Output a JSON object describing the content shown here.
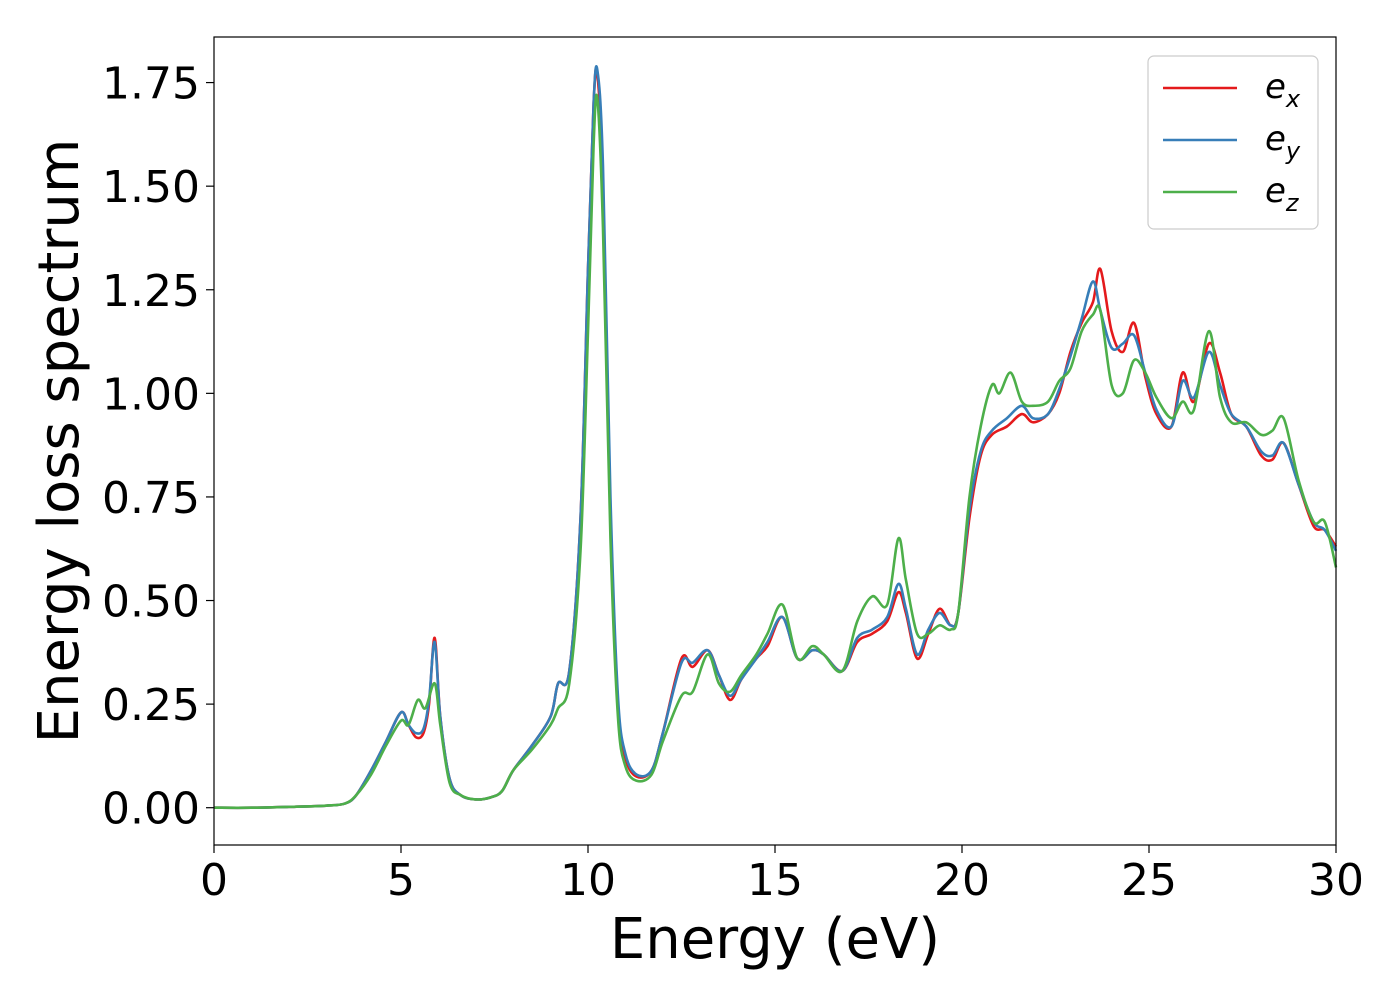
{
  "chart_data": {
    "type": "line",
    "xlabel": "Energy (eV)",
    "ylabel": "Energy loss spectrum",
    "xlim": [
      0,
      30
    ],
    "ylim": [
      -0.09,
      1.86
    ],
    "x_ticks": [
      0,
      5,
      10,
      15,
      20,
      25,
      30
    ],
    "x_tick_labels": [
      "0",
      "5",
      "10",
      "15",
      "20",
      "25",
      "30"
    ],
    "y_ticks": [
      0,
      0.25,
      0.5,
      0.75,
      1.0,
      1.25,
      1.5,
      1.75
    ],
    "y_tick_labels": [
      "0.00",
      "0.25",
      "0.50",
      "0.75",
      "1.00",
      "1.25",
      "1.50",
      "1.75"
    ],
    "grid": false,
    "legend_position": "top-right",
    "series": [
      {
        "name": "e",
        "subscript": "x",
        "color": "#e41a1c",
        "points": [
          [
            0,
            0
          ],
          [
            1,
            0
          ],
          [
            2,
            0.002
          ],
          [
            3,
            0.005
          ],
          [
            3.5,
            0.01
          ],
          [
            3.8,
            0.03
          ],
          [
            4.2,
            0.09
          ],
          [
            4.6,
            0.16
          ],
          [
            5.0,
            0.23
          ],
          [
            5.2,
            0.2
          ],
          [
            5.4,
            0.17
          ],
          [
            5.6,
            0.18
          ],
          [
            5.75,
            0.25
          ],
          [
            5.9,
            0.41
          ],
          [
            6.05,
            0.22
          ],
          [
            6.3,
            0.07
          ],
          [
            6.6,
            0.03
          ],
          [
            7.0,
            0.02
          ],
          [
            7.4,
            0.025
          ],
          [
            7.7,
            0.04
          ],
          [
            8.0,
            0.09
          ],
          [
            8.5,
            0.15
          ],
          [
            9.0,
            0.22
          ],
          [
            9.2,
            0.3
          ],
          [
            9.5,
            0.33
          ],
          [
            9.8,
            0.7
          ],
          [
            10.0,
            1.3
          ],
          [
            10.15,
            1.7
          ],
          [
            10.25,
            1.77
          ],
          [
            10.4,
            1.5
          ],
          [
            10.6,
            0.7
          ],
          [
            10.8,
            0.25
          ],
          [
            11.0,
            0.12
          ],
          [
            11.3,
            0.075
          ],
          [
            11.7,
            0.09
          ],
          [
            12.0,
            0.18
          ],
          [
            12.5,
            0.36
          ],
          [
            12.8,
            0.34
          ],
          [
            13.2,
            0.38
          ],
          [
            13.5,
            0.32
          ],
          [
            13.8,
            0.26
          ],
          [
            14.1,
            0.31
          ],
          [
            14.5,
            0.36
          ],
          [
            14.8,
            0.39
          ],
          [
            15.2,
            0.46
          ],
          [
            15.6,
            0.36
          ],
          [
            16.0,
            0.38
          ],
          [
            16.3,
            0.37
          ],
          [
            16.8,
            0.33
          ],
          [
            17.2,
            0.4
          ],
          [
            17.6,
            0.42
          ],
          [
            18.0,
            0.45
          ],
          [
            18.3,
            0.52
          ],
          [
            18.5,
            0.47
          ],
          [
            18.8,
            0.36
          ],
          [
            19.1,
            0.42
          ],
          [
            19.4,
            0.48
          ],
          [
            19.7,
            0.44
          ],
          [
            19.9,
            0.47
          ],
          [
            20.2,
            0.7
          ],
          [
            20.5,
            0.85
          ],
          [
            20.8,
            0.9
          ],
          [
            21.2,
            0.92
          ],
          [
            21.6,
            0.95
          ],
          [
            21.9,
            0.93
          ],
          [
            22.3,
            0.95
          ],
          [
            22.6,
            1.0
          ],
          [
            22.9,
            1.1
          ],
          [
            23.2,
            1.17
          ],
          [
            23.5,
            1.22
          ],
          [
            23.7,
            1.3
          ],
          [
            24.0,
            1.15
          ],
          [
            24.3,
            1.1
          ],
          [
            24.6,
            1.17
          ],
          [
            24.9,
            1.04
          ],
          [
            25.2,
            0.95
          ],
          [
            25.6,
            0.92
          ],
          [
            25.9,
            1.05
          ],
          [
            26.2,
            0.98
          ],
          [
            26.6,
            1.12
          ],
          [
            26.9,
            1.05
          ],
          [
            27.2,
            0.95
          ],
          [
            27.6,
            0.92
          ],
          [
            28.0,
            0.85
          ],
          [
            28.3,
            0.84
          ],
          [
            28.6,
            0.88
          ],
          [
            29.0,
            0.78
          ],
          [
            29.4,
            0.68
          ],
          [
            29.7,
            0.67
          ],
          [
            30.0,
            0.63
          ]
        ]
      },
      {
        "name": "e",
        "subscript": "y",
        "color": "#377eb8",
        "points": [
          [
            0,
            0
          ],
          [
            1,
            0
          ],
          [
            2,
            0.002
          ],
          [
            3,
            0.005
          ],
          [
            3.5,
            0.01
          ],
          [
            3.8,
            0.03
          ],
          [
            4.2,
            0.09
          ],
          [
            4.6,
            0.16
          ],
          [
            5.0,
            0.23
          ],
          [
            5.2,
            0.2
          ],
          [
            5.4,
            0.18
          ],
          [
            5.6,
            0.19
          ],
          [
            5.75,
            0.26
          ],
          [
            5.9,
            0.4
          ],
          [
            6.05,
            0.22
          ],
          [
            6.3,
            0.07
          ],
          [
            6.6,
            0.03
          ],
          [
            7.0,
            0.02
          ],
          [
            7.4,
            0.025
          ],
          [
            7.7,
            0.04
          ],
          [
            8.0,
            0.09
          ],
          [
            8.5,
            0.15
          ],
          [
            9.0,
            0.22
          ],
          [
            9.2,
            0.3
          ],
          [
            9.5,
            0.33
          ],
          [
            9.8,
            0.7
          ],
          [
            10.0,
            1.3
          ],
          [
            10.15,
            1.7
          ],
          [
            10.25,
            1.78
          ],
          [
            10.4,
            1.55
          ],
          [
            10.6,
            0.75
          ],
          [
            10.8,
            0.27
          ],
          [
            11.0,
            0.13
          ],
          [
            11.3,
            0.08
          ],
          [
            11.7,
            0.09
          ],
          [
            12.0,
            0.18
          ],
          [
            12.5,
            0.35
          ],
          [
            12.8,
            0.35
          ],
          [
            13.2,
            0.38
          ],
          [
            13.5,
            0.32
          ],
          [
            13.8,
            0.27
          ],
          [
            14.1,
            0.31
          ],
          [
            14.5,
            0.36
          ],
          [
            14.8,
            0.4
          ],
          [
            15.2,
            0.46
          ],
          [
            15.6,
            0.36
          ],
          [
            16.0,
            0.38
          ],
          [
            16.3,
            0.37
          ],
          [
            16.8,
            0.33
          ],
          [
            17.2,
            0.41
          ],
          [
            17.6,
            0.43
          ],
          [
            18.0,
            0.46
          ],
          [
            18.3,
            0.54
          ],
          [
            18.5,
            0.48
          ],
          [
            18.8,
            0.37
          ],
          [
            19.1,
            0.43
          ],
          [
            19.4,
            0.47
          ],
          [
            19.7,
            0.44
          ],
          [
            19.9,
            0.47
          ],
          [
            20.2,
            0.72
          ],
          [
            20.5,
            0.86
          ],
          [
            20.8,
            0.91
          ],
          [
            21.2,
            0.94
          ],
          [
            21.6,
            0.97
          ],
          [
            21.9,
            0.94
          ],
          [
            22.3,
            0.95
          ],
          [
            22.6,
            1.01
          ],
          [
            22.9,
            1.09
          ],
          [
            23.2,
            1.18
          ],
          [
            23.5,
            1.27
          ],
          [
            23.7,
            1.2
          ],
          [
            24.0,
            1.11
          ],
          [
            24.3,
            1.12
          ],
          [
            24.6,
            1.14
          ],
          [
            24.9,
            1.05
          ],
          [
            25.2,
            0.96
          ],
          [
            25.6,
            0.92
          ],
          [
            25.9,
            1.03
          ],
          [
            26.2,
            0.99
          ],
          [
            26.6,
            1.1
          ],
          [
            26.9,
            1.02
          ],
          [
            27.2,
            0.95
          ],
          [
            27.6,
            0.92
          ],
          [
            28.0,
            0.86
          ],
          [
            28.3,
            0.85
          ],
          [
            28.6,
            0.88
          ],
          [
            29.0,
            0.78
          ],
          [
            29.4,
            0.69
          ],
          [
            29.7,
            0.67
          ],
          [
            30.0,
            0.62
          ]
        ]
      },
      {
        "name": "e",
        "subscript": "z",
        "color": "#4daf4a",
        "points": [
          [
            0,
            0
          ],
          [
            1,
            0
          ],
          [
            2,
            0.002
          ],
          [
            3,
            0.005
          ],
          [
            3.5,
            0.01
          ],
          [
            3.8,
            0.03
          ],
          [
            4.2,
            0.08
          ],
          [
            4.6,
            0.15
          ],
          [
            5.0,
            0.21
          ],
          [
            5.2,
            0.2
          ],
          [
            5.45,
            0.26
          ],
          [
            5.65,
            0.24
          ],
          [
            5.9,
            0.3
          ],
          [
            6.05,
            0.2
          ],
          [
            6.3,
            0.06
          ],
          [
            6.6,
            0.03
          ],
          [
            7.0,
            0.02
          ],
          [
            7.4,
            0.025
          ],
          [
            7.7,
            0.04
          ],
          [
            8.0,
            0.09
          ],
          [
            8.5,
            0.14
          ],
          [
            9.0,
            0.2
          ],
          [
            9.2,
            0.24
          ],
          [
            9.5,
            0.3
          ],
          [
            9.8,
            0.62
          ],
          [
            10.0,
            1.15
          ],
          [
            10.15,
            1.6
          ],
          [
            10.25,
            1.71
          ],
          [
            10.4,
            1.4
          ],
          [
            10.6,
            0.65
          ],
          [
            10.8,
            0.22
          ],
          [
            11.0,
            0.1
          ],
          [
            11.3,
            0.065
          ],
          [
            11.7,
            0.08
          ],
          [
            12.0,
            0.16
          ],
          [
            12.5,
            0.27
          ],
          [
            12.8,
            0.28
          ],
          [
            13.2,
            0.37
          ],
          [
            13.5,
            0.3
          ],
          [
            13.8,
            0.28
          ],
          [
            14.1,
            0.32
          ],
          [
            14.5,
            0.37
          ],
          [
            14.8,
            0.42
          ],
          [
            15.2,
            0.49
          ],
          [
            15.6,
            0.36
          ],
          [
            16.0,
            0.39
          ],
          [
            16.3,
            0.37
          ],
          [
            16.8,
            0.33
          ],
          [
            17.2,
            0.45
          ],
          [
            17.6,
            0.51
          ],
          [
            18.0,
            0.49
          ],
          [
            18.3,
            0.65
          ],
          [
            18.5,
            0.55
          ],
          [
            18.8,
            0.42
          ],
          [
            19.1,
            0.42
          ],
          [
            19.4,
            0.44
          ],
          [
            19.7,
            0.43
          ],
          [
            19.9,
            0.47
          ],
          [
            20.2,
            0.75
          ],
          [
            20.5,
            0.92
          ],
          [
            20.8,
            1.02
          ],
          [
            21.0,
            1.0
          ],
          [
            21.3,
            1.05
          ],
          [
            21.6,
            0.98
          ],
          [
            21.9,
            0.97
          ],
          [
            22.3,
            0.98
          ],
          [
            22.6,
            1.03
          ],
          [
            22.9,
            1.06
          ],
          [
            23.2,
            1.15
          ],
          [
            23.5,
            1.19
          ],
          [
            23.7,
            1.2
          ],
          [
            24.0,
            1.02
          ],
          [
            24.3,
            1.0
          ],
          [
            24.6,
            1.08
          ],
          [
            24.9,
            1.05
          ],
          [
            25.2,
            0.99
          ],
          [
            25.6,
            0.94
          ],
          [
            25.9,
            0.98
          ],
          [
            26.2,
            0.96
          ],
          [
            26.6,
            1.15
          ],
          [
            26.9,
            0.99
          ],
          [
            27.2,
            0.93
          ],
          [
            27.6,
            0.93
          ],
          [
            28.0,
            0.9
          ],
          [
            28.3,
            0.91
          ],
          [
            28.6,
            0.94
          ],
          [
            29.0,
            0.79
          ],
          [
            29.4,
            0.69
          ],
          [
            29.7,
            0.69
          ],
          [
            30.0,
            0.58
          ]
        ]
      }
    ]
  }
}
